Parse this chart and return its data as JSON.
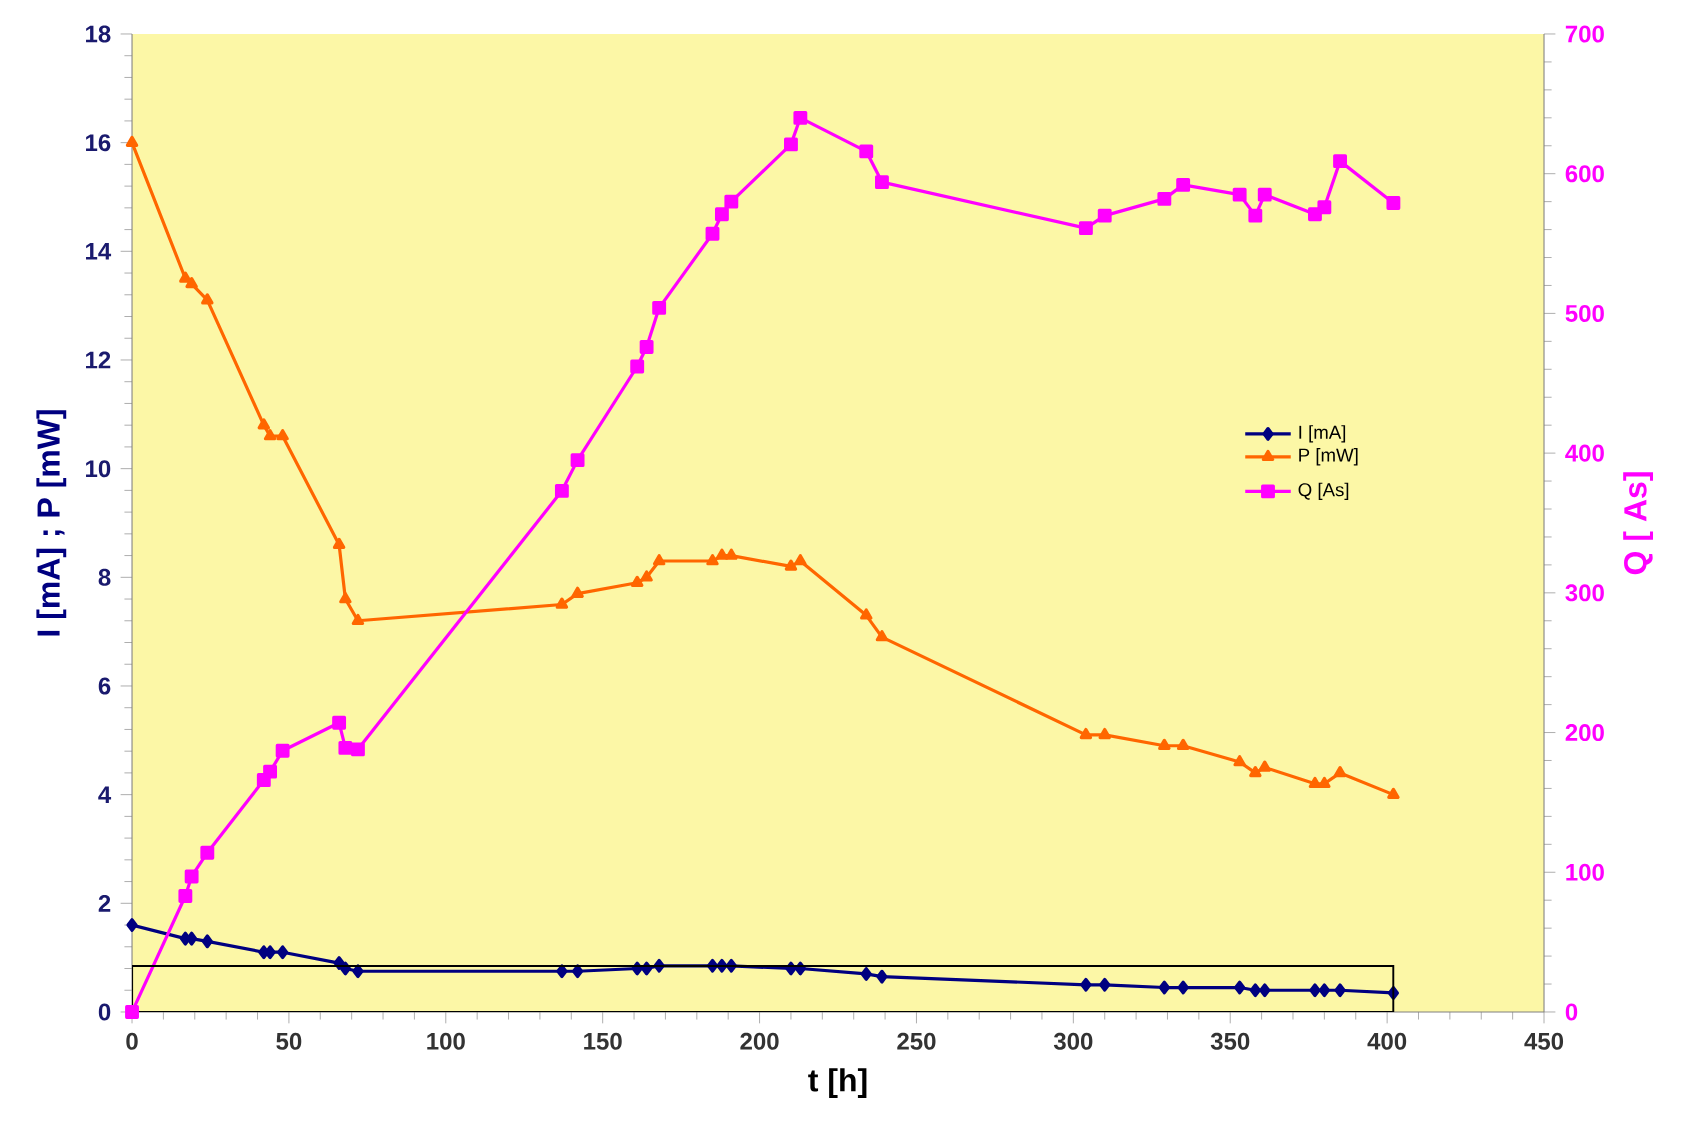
{
  "chart_data": {
    "type": "line",
    "xlabel": "t [h]",
    "ylabel": "I [mA] ; P [mW]",
    "y2label": "Q [ As]",
    "x": [
      0,
      17,
      19,
      24,
      42,
      44,
      48,
      66,
      68,
      72,
      137,
      142,
      161,
      164,
      168,
      185,
      188,
      191,
      210,
      213,
      234,
      239,
      304,
      310,
      329,
      335,
      353,
      358,
      361,
      377,
      380,
      385,
      402
    ],
    "series": [
      {
        "name": "I [mA]",
        "color": "#000080",
        "marker": "diamond",
        "values": [
          1.6,
          1.35,
          1.35,
          1.3,
          1.1,
          1.1,
          1.1,
          0.9,
          0.8,
          0.75,
          0.75,
          0.75,
          0.8,
          0.8,
          0.85,
          0.85,
          0.85,
          0.85,
          0.8,
          0.8,
          0.7,
          0.65,
          0.5,
          0.5,
          0.45,
          0.45,
          0.45,
          0.4,
          0.4,
          0.4,
          0.4,
          0.4,
          0.35
        ]
      },
      {
        "name": "P [mW]",
        "color": "#ff6600",
        "marker": "triangle",
        "values": [
          16,
          13.5,
          13.4,
          13.1,
          10.8,
          10.6,
          10.6,
          8.6,
          7.6,
          7.2,
          7.5,
          7.7,
          7.9,
          8.0,
          8.3,
          8.3,
          8.4,
          8.4,
          8.2,
          8.3,
          7.3,
          6.9,
          5.1,
          5.1,
          4.9,
          4.9,
          4.6,
          4.4,
          4.5,
          4.2,
          4.2,
          4.4,
          4.0
        ]
      },
      {
        "name": "Q [As]",
        "color": "#ff00ff",
        "marker": "square",
        "axis": "y2",
        "values": [
          0,
          83,
          97,
          114,
          166,
          172,
          187,
          207,
          189,
          188,
          373,
          395,
          462,
          476,
          504,
          557,
          571,
          580,
          621,
          640,
          616,
          594,
          561,
          570,
          582,
          592,
          585,
          570,
          585,
          571,
          576,
          609,
          579
        ]
      }
    ],
    "xlim": [
      0,
      450
    ],
    "xticks": [
      0,
      50,
      100,
      150,
      200,
      250,
      300,
      350,
      400,
      450
    ],
    "ylim": [
      0,
      18
    ],
    "yticks": [
      0,
      2,
      4,
      6,
      8,
      10,
      12,
      14,
      16,
      18
    ],
    "y2lim": [
      0,
      700
    ],
    "y2ticks": [
      0,
      100,
      200,
      300,
      400,
      500,
      600,
      700
    ],
    "legend": "right",
    "grid": false,
    "line_style": "solid"
  }
}
